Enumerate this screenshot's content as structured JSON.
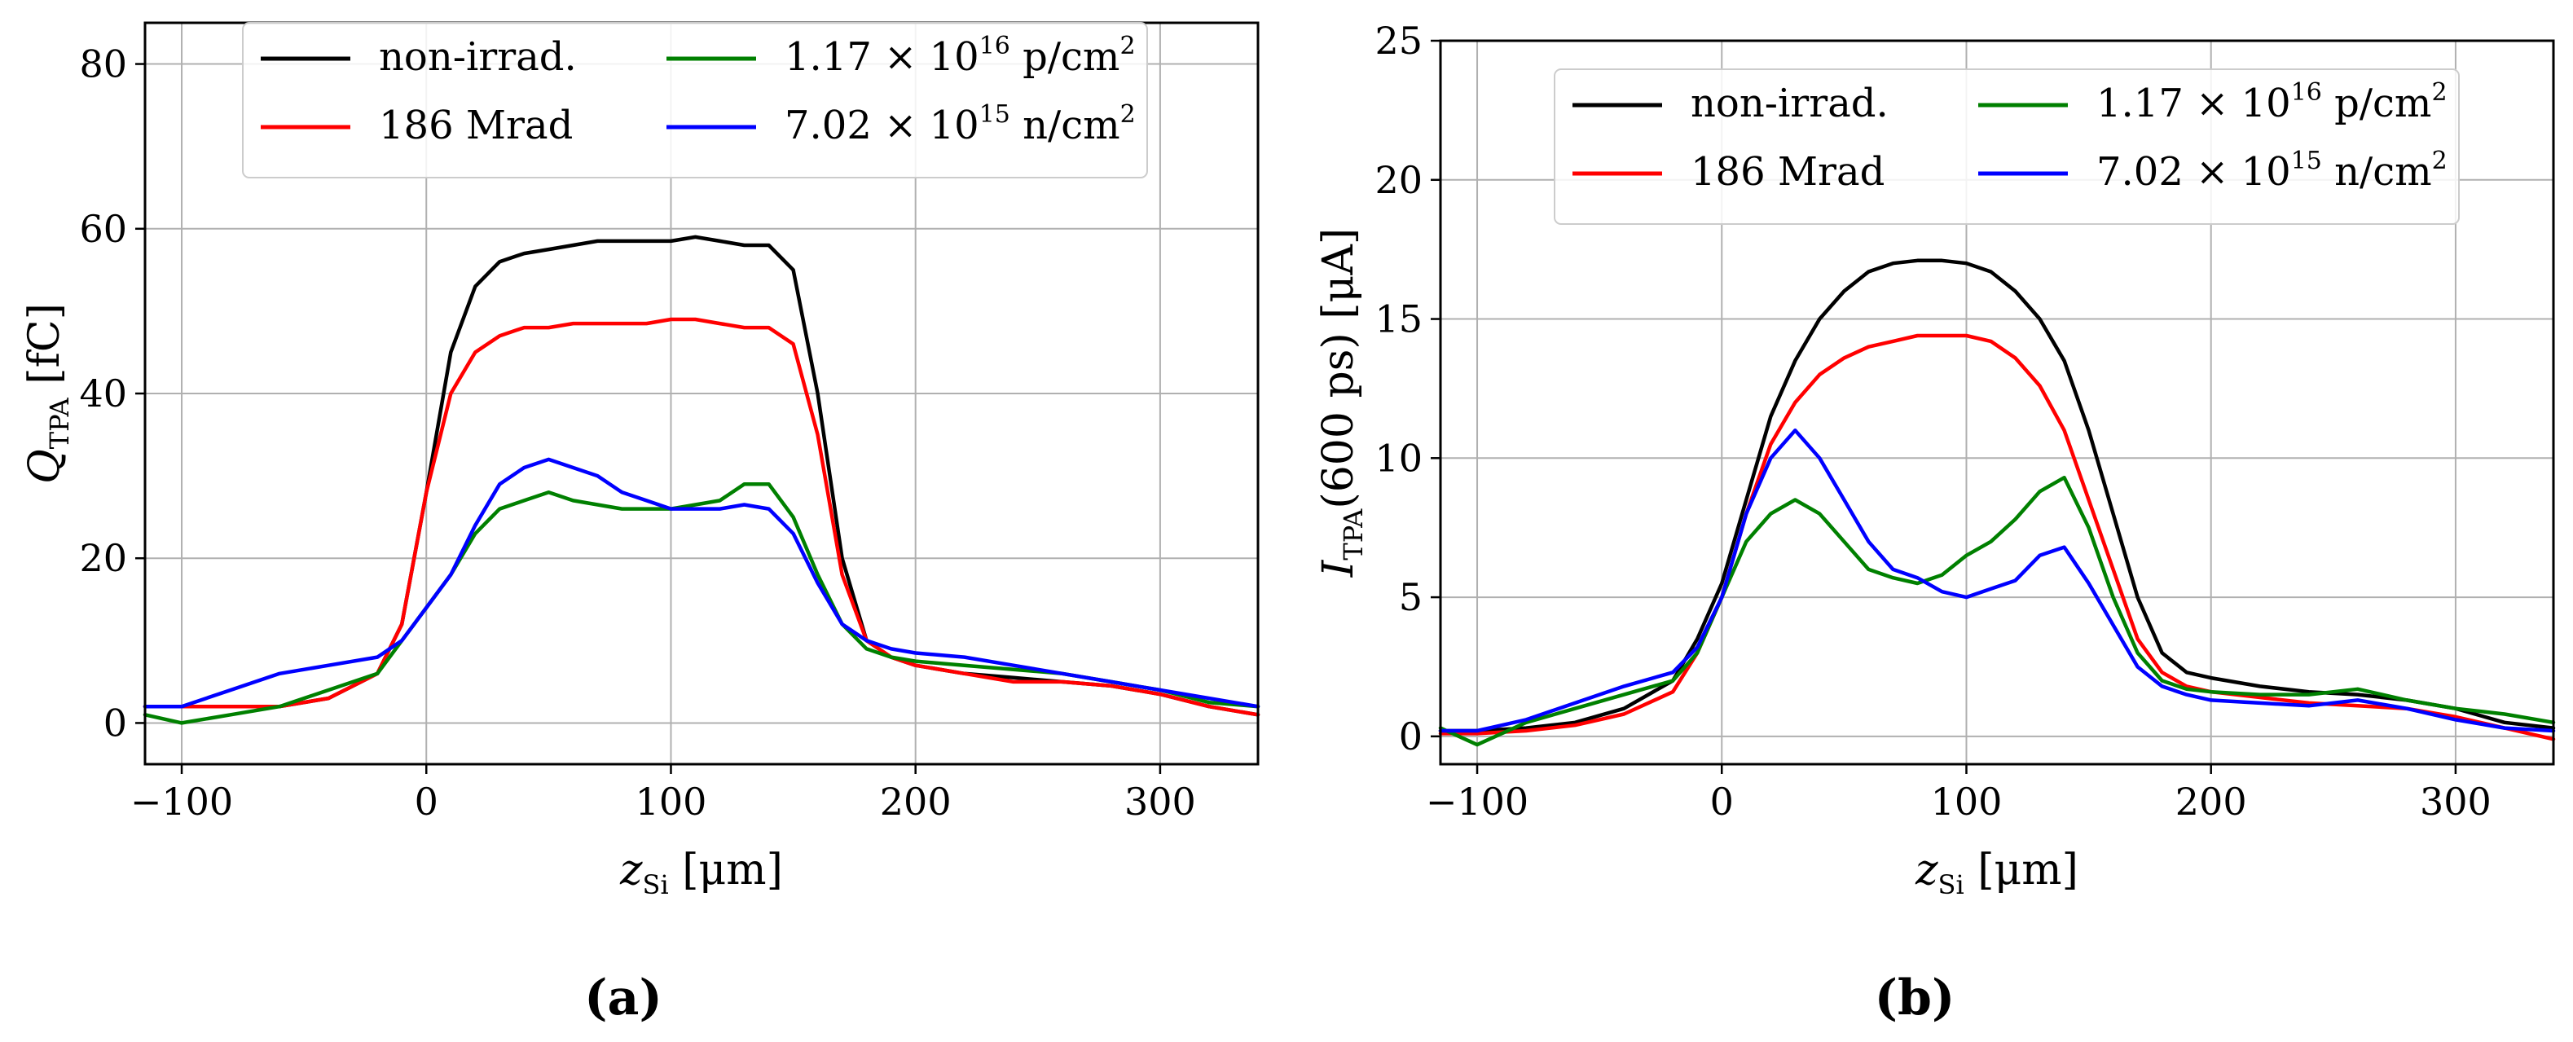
{
  "panels": [
    {
      "tag": "(a)",
      "xlabel": {
        "main": "z",
        "sub": "Si",
        "unit": " [μm]"
      },
      "ylabel": {
        "main": "Q",
        "sub": "TPA",
        "unit": " [fC]"
      }
    },
    {
      "tag": "(b)",
      "xlabel": {
        "main": "z",
        "sub": "Si",
        "unit": " [μm]"
      },
      "ylabel": {
        "main": "I",
        "sub": "TPA",
        "unit": "(600 ps) [μA]"
      }
    }
  ],
  "legend": [
    {
      "label": "non-irrad.",
      "color": "#000000"
    },
    {
      "label": "186 Mrad",
      "color": "#ff0000"
    },
    {
      "label_parts": [
        "1.17 × 10",
        "16",
        " p/cm",
        "2"
      ],
      "color": "#008000"
    },
    {
      "label_parts": [
        "7.02 × 10",
        "15",
        " n/cm",
        "2"
      ],
      "color": "#0000ff"
    }
  ],
  "chart_data": [
    {
      "type": "line",
      "x": [
        -115,
        -100,
        -80,
        -60,
        -40,
        -20,
        -10,
        0,
        10,
        20,
        30,
        40,
        50,
        60,
        70,
        80,
        90,
        100,
        110,
        120,
        130,
        140,
        150,
        160,
        170,
        180,
        190,
        200,
        220,
        240,
        260,
        280,
        300,
        320,
        340
      ],
      "xlim": [
        -115,
        340
      ],
      "ylim": [
        -5,
        85
      ],
      "xticks": [
        -100,
        0,
        100,
        200,
        300
      ],
      "yticks": [
        0,
        20,
        40,
        60,
        80
      ],
      "grid": true,
      "legend_position": "top-center",
      "series": [
        {
          "name": "non-irrad.",
          "color": "#000000",
          "values": [
            2,
            2,
            2,
            2,
            3,
            6,
            12,
            28,
            45,
            53,
            56,
            57,
            57.5,
            58,
            58.5,
            58.5,
            58.5,
            58.5,
            59,
            58.5,
            58,
            58,
            55,
            40,
            20,
            10,
            8,
            7,
            6,
            5.5,
            5,
            4.5,
            3.5,
            2,
            1
          ]
        },
        {
          "name": "186 Mrad",
          "color": "#ff0000",
          "values": [
            2,
            2,
            2,
            2,
            3,
            6,
            12,
            28,
            40,
            45,
            47,
            48,
            48,
            48.5,
            48.5,
            48.5,
            48.5,
            49,
            49,
            48.5,
            48,
            48,
            46,
            35,
            18,
            10,
            8,
            7,
            6,
            5,
            5,
            4.5,
            3.5,
            2,
            1
          ]
        },
        {
          "name": "1.17 × 10^16 p/cm^2",
          "color": "#008000",
          "values": [
            1,
            0,
            1,
            2,
            4,
            6,
            10,
            14,
            18,
            23,
            26,
            27,
            28,
            27,
            26.5,
            26,
            26,
            26,
            26.5,
            27,
            29,
            29,
            25,
            18,
            12,
            9,
            8,
            7.5,
            7,
            6.5,
            6,
            5,
            4,
            2.5,
            2
          ]
        },
        {
          "name": "7.02 × 10^15 n/cm^2",
          "color": "#0000ff",
          "values": [
            2,
            2,
            4,
            6,
            7,
            8,
            10,
            14,
            18,
            24,
            29,
            31,
            32,
            31,
            30,
            28,
            27,
            26,
            26,
            26,
            26.5,
            26,
            23,
            17,
            12,
            10,
            9,
            8.5,
            8,
            7,
            6,
            5,
            4,
            3,
            2
          ]
        }
      ]
    },
    {
      "type": "line",
      "x": [
        -115,
        -100,
        -80,
        -60,
        -40,
        -20,
        -10,
        0,
        10,
        20,
        30,
        40,
        50,
        60,
        70,
        80,
        90,
        100,
        110,
        120,
        130,
        140,
        150,
        160,
        170,
        180,
        190,
        200,
        220,
        240,
        260,
        280,
        300,
        320,
        340
      ],
      "xlim": [
        -115,
        340
      ],
      "ylim": [
        -1,
        25
      ],
      "xticks": [
        -100,
        0,
        100,
        200,
        300
      ],
      "yticks": [
        0,
        5,
        10,
        15,
        20,
        25
      ],
      "grid": true,
      "legend_position": "top-center",
      "series": [
        {
          "name": "non-irrad.",
          "color": "#000000",
          "values": [
            0.2,
            0.2,
            0.3,
            0.5,
            1.0,
            2.0,
            3.5,
            5.5,
            8.5,
            11.5,
            13.5,
            15.0,
            16.0,
            16.7,
            17.0,
            17.1,
            17.1,
            17.0,
            16.7,
            16.0,
            15.0,
            13.5,
            11.0,
            8.0,
            5.0,
            3.0,
            2.3,
            2.1,
            1.8,
            1.6,
            1.5,
            1.3,
            1.0,
            0.5,
            0.3
          ]
        },
        {
          "name": "186 Mrad",
          "color": "#ff0000",
          "values": [
            0.1,
            0.1,
            0.2,
            0.4,
            0.8,
            1.6,
            3.0,
            5.0,
            8.0,
            10.5,
            12.0,
            13.0,
            13.6,
            14.0,
            14.2,
            14.4,
            14.4,
            14.4,
            14.2,
            13.6,
            12.6,
            11.0,
            8.5,
            6.0,
            3.5,
            2.3,
            1.8,
            1.6,
            1.4,
            1.2,
            1.1,
            1.0,
            0.7,
            0.3,
            -0.1
          ]
        },
        {
          "name": "1.17 × 10^16 p/cm^2",
          "color": "#008000",
          "values": [
            0.3,
            -0.3,
            0.5,
            1.0,
            1.5,
            2.0,
            3.0,
            5.0,
            7.0,
            8.0,
            8.5,
            8.0,
            7.0,
            6.0,
            5.7,
            5.5,
            5.8,
            6.5,
            7.0,
            7.8,
            8.8,
            9.3,
            7.5,
            5.0,
            3.0,
            2.0,
            1.7,
            1.6,
            1.5,
            1.5,
            1.7,
            1.3,
            1.0,
            0.8,
            0.5
          ]
        },
        {
          "name": "7.02 × 10^15 n/cm^2",
          "color": "#0000ff",
          "values": [
            0.2,
            0.2,
            0.6,
            1.2,
            1.8,
            2.3,
            3.2,
            5.0,
            8.0,
            10.0,
            11.0,
            10.0,
            8.5,
            7.0,
            6.0,
            5.7,
            5.2,
            5.0,
            5.3,
            5.6,
            6.5,
            6.8,
            5.5,
            4.0,
            2.5,
            1.8,
            1.5,
            1.3,
            1.2,
            1.1,
            1.3,
            1.0,
            0.6,
            0.3,
            0.2
          ]
        }
      ]
    }
  ]
}
